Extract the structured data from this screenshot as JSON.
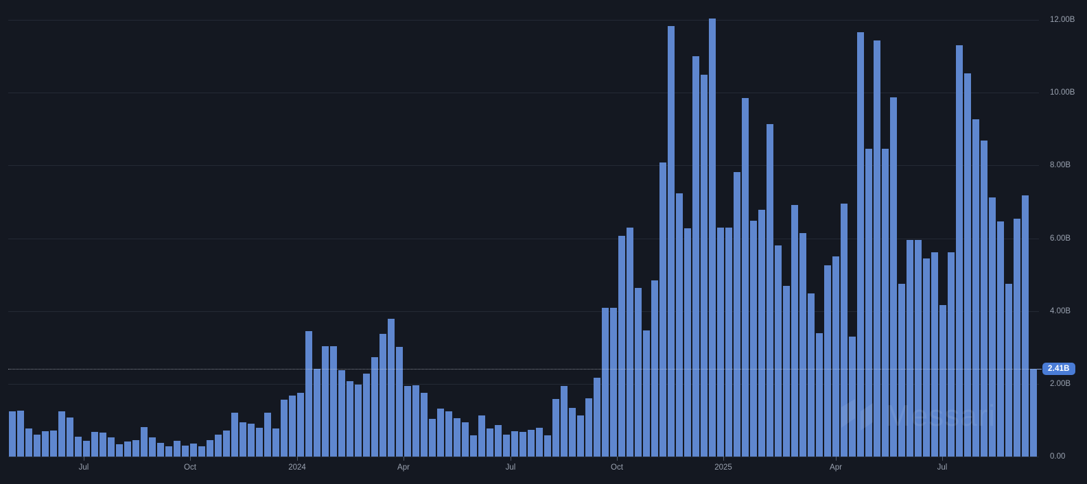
{
  "chart_data": {
    "type": "bar",
    "title": "",
    "unit": "B",
    "frequency": "weekly",
    "grid": true,
    "legend_position": "none",
    "ylim": [
      0,
      12.5
    ],
    "y_ticks": [
      {
        "label": "0.00",
        "value": 0
      },
      {
        "label": "2.00B",
        "value": 2
      },
      {
        "label": "4.00B",
        "value": 4
      },
      {
        "label": "6.00B",
        "value": 6
      },
      {
        "label": "8.00B",
        "value": 8
      },
      {
        "label": "10.00B",
        "value": 10
      },
      {
        "label": "12.00B",
        "value": 12
      }
    ],
    "x_tick_labels": [
      {
        "label": "Jul",
        "x": 122
      },
      {
        "label": "Oct",
        "x": 277
      },
      {
        "label": "2024",
        "x": 433
      },
      {
        "label": "Apr",
        "x": 588
      },
      {
        "label": "Jul",
        "x": 744
      },
      {
        "label": "Oct",
        "x": 899
      },
      {
        "label": "2025",
        "x": 1054
      },
      {
        "label": "Apr",
        "x": 1218
      },
      {
        "label": "Jul",
        "x": 1373
      }
    ],
    "values": [
      1.24,
      1.26,
      0.77,
      0.6,
      0.69,
      0.71,
      1.24,
      1.07,
      0.54,
      0.43,
      0.68,
      0.66,
      0.53,
      0.34,
      0.41,
      0.45,
      0.81,
      0.52,
      0.38,
      0.28,
      0.43,
      0.3,
      0.35,
      0.28,
      0.45,
      0.6,
      0.71,
      1.2,
      0.95,
      0.9,
      0.8,
      1.2,
      0.77,
      1.57,
      1.68,
      1.76,
      3.44,
      2.41,
      3.03,
      3.03,
      2.37,
      2.07,
      1.98,
      2.28,
      2.74,
      3.38,
      3.78,
      3.01,
      1.94,
      1.96,
      1.76,
      1.03,
      1.31,
      1.24,
      1.05,
      0.95,
      0.58,
      1.13,
      0.77,
      0.87,
      0.6,
      0.7,
      0.68,
      0.73,
      0.79,
      0.58,
      1.59,
      1.94,
      1.33,
      1.13,
      1.61,
      2.17,
      4.09,
      4.09,
      6.06,
      6.29,
      4.63,
      3.46,
      4.84,
      8.09,
      11.83,
      7.24,
      6.27,
      11.01,
      10.5,
      12.04,
      6.29,
      6.29,
      7.81,
      9.86,
      6.48,
      6.79,
      9.13,
      5.8,
      4.7,
      6.92,
      6.14,
      4.48,
      3.4,
      5.25,
      5.5,
      6.95,
      3.3,
      11.66,
      8.45,
      11.44,
      8.45,
      9.87,
      4.75,
      5.95,
      5.95,
      5.44,
      5.61,
      4.17,
      5.61,
      11.3,
      10.54,
      9.27,
      8.69,
      7.13,
      6.46,
      4.74,
      6.53,
      7.18,
      2.41
    ],
    "highlight_line": {
      "value": 2.41,
      "label": "2.41B",
      "style": "dotted"
    }
  },
  "watermark": {
    "label": "Messari"
  },
  "colors": {
    "background": "#141821",
    "bar": "#5f87cf",
    "badge": "#4a7cd6",
    "axis_label": "#9aa2b0",
    "gridline": "rgba(160,172,194,0.12)",
    "dotted_line": "rgba(228,235,245,0.55)"
  }
}
